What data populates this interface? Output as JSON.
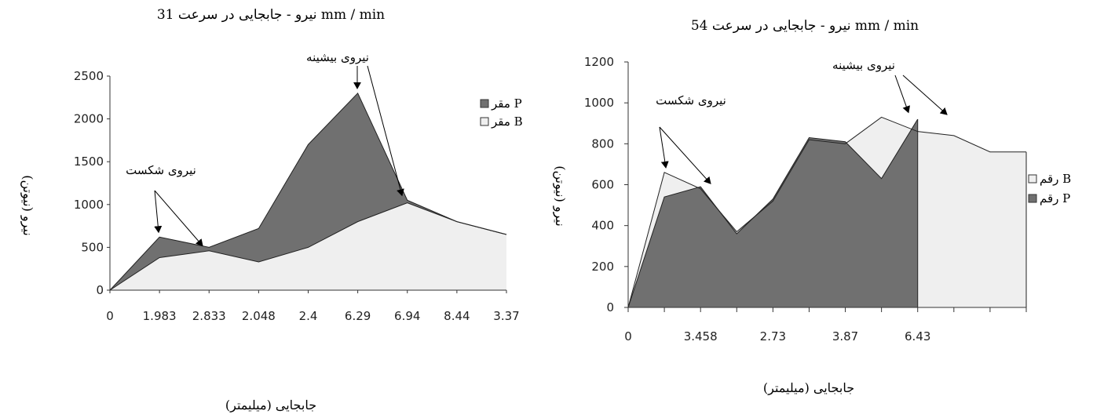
{
  "colors": {
    "series_P": "#707070",
    "series_B": "#efefef",
    "stroke": "#222222"
  },
  "chart_data": [
    {
      "type": "area",
      "title": "نیرو - جابجایی در سرعت 31 mm / min",
      "xlabel": "جابجایی (میلیمتر)",
      "ylabel": "نیرو (نیوتن)",
      "x_ticks": [
        "0",
        "1.983",
        "2.833",
        "2.048",
        "2.4",
        "6.29",
        "6.94",
        "8.44",
        "3.37"
      ],
      "yticks": [
        0,
        500,
        1000,
        1500,
        2000,
        2500
      ],
      "ylim": [
        0,
        2500
      ],
      "grid": false,
      "legend_position": "right",
      "series": [
        {
          "name": "رقم P",
          "values": [
            0,
            620,
            500,
            720,
            1700,
            2300,
            1050,
            800,
            650
          ]
        },
        {
          "name": "رقم B",
          "values": [
            0,
            380,
            460,
            330,
            500,
            800,
            1020,
            800,
            650
          ]
        }
      ],
      "annotations": [
        {
          "text": "نیروی بیشینه"
        },
        {
          "text": "نیروی شکست"
        }
      ]
    },
    {
      "type": "area",
      "title": "نیرو - جابجایی در سرعت 54 mm / min",
      "xlabel": "جابجایی (میلیمتر)",
      "ylabel": "نیرو (نیوتن)",
      "x_ticks": [
        "0",
        "",
        "3.458",
        "",
        "2.73",
        "",
        "3.87",
        "",
        "6.43",
        "",
        "",
        ""
      ],
      "yticks": [
        0,
        200,
        400,
        600,
        800,
        1000,
        1200
      ],
      "ylim": [
        0,
        1200
      ],
      "grid": false,
      "legend_position": "right",
      "series": [
        {
          "name": "رقم B",
          "values": [
            0,
            660,
            580,
            370,
            520,
            820,
            800,
            930,
            860,
            840,
            760,
            760
          ]
        },
        {
          "name": "رقم P",
          "values": [
            0,
            540,
            590,
            360,
            530,
            830,
            810,
            630,
            920
          ]
        }
      ],
      "annotations": [
        {
          "text": "نیروی بیشینه"
        },
        {
          "text": "نیروی شکست"
        }
      ]
    }
  ]
}
